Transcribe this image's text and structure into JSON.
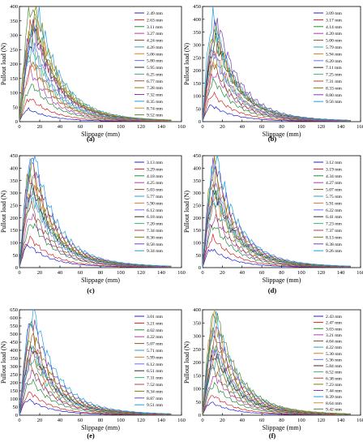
{
  "colors": [
    "#1f1fd6",
    "#d62020",
    "#1f8f2f",
    "#b03ab0",
    "#8a5a2b",
    "#2aa7b5",
    "#e07a1f",
    "#6b6bff",
    "#2f2f2f",
    "#3cb371",
    "#c04040",
    "#808000",
    "#7b3fb0",
    "#1fa0e0",
    "#d09030",
    "#5a8a3a"
  ],
  "chart_data": [
    {
      "type": "line",
      "label": "(a)",
      "xlabel": "Slippage (mm)",
      "ylabel": "Pullout load (N)",
      "xlim": [
        0,
        160
      ],
      "ylim": [
        0,
        400
      ],
      "xticks": [
        0,
        20,
        40,
        60,
        80,
        100,
        120,
        140,
        160
      ],
      "yticks": [
        0,
        50,
        100,
        150,
        200,
        250,
        300,
        350,
        400
      ],
      "series": [
        {
          "name": "2.49 mm",
          "peak": 40,
          "peak_x": 8
        },
        {
          "name": "2.63 mm",
          "peak": 75,
          "peak_x": 10
        },
        {
          "name": "3.11 mm",
          "peak": 120,
          "peak_x": 12
        },
        {
          "name": "3.27 mm",
          "peak": 165,
          "peak_x": 10
        },
        {
          "name": "4.24 mm",
          "peak": 215,
          "peak_x": 9
        },
        {
          "name": "4.26 mm",
          "peak": 230,
          "peak_x": 11
        },
        {
          "name": "5.06 mm",
          "peak": 190,
          "peak_x": 14
        },
        {
          "name": "5.80 mm",
          "peak": 260,
          "peak_x": 12
        },
        {
          "name": "5.95 mm",
          "peak": 300,
          "peak_x": 15
        },
        {
          "name": "6.25 mm",
          "peak": 280,
          "peak_x": 10
        },
        {
          "name": "6.77 mm",
          "peak": 330,
          "peak_x": 13
        },
        {
          "name": "7.28 mm",
          "peak": 360,
          "peak_x": 16
        },
        {
          "name": "7.32 mm",
          "peak": 310,
          "peak_x": 12
        },
        {
          "name": "8.35 mm",
          "peak": 350,
          "peak_x": 18
        },
        {
          "name": "8.74 mm",
          "peak": 340,
          "peak_x": 14
        },
        {
          "name": "9.52 mm",
          "peak": 380,
          "peak_x": 11
        }
      ]
    },
    {
      "type": "line",
      "label": "(b)",
      "xlabel": "Slippage (mm)",
      "ylabel": "Pullout load (N)",
      "xlim": [
        0,
        160
      ],
      "ylim": [
        0,
        450
      ],
      "xticks": [
        0,
        20,
        40,
        60,
        80,
        100,
        120,
        140,
        160
      ],
      "yticks": [
        0,
        50,
        100,
        150,
        200,
        250,
        300,
        350,
        400,
        450
      ],
      "series": [
        {
          "name": "3.09 mm",
          "peak": 60,
          "peak_x": 8
        },
        {
          "name": "3.17 mm",
          "peak": 100,
          "peak_x": 10
        },
        {
          "name": "4.14 mm",
          "peak": 150,
          "peak_x": 11
        },
        {
          "name": "4.20 mm",
          "peak": 180,
          "peak_x": 12
        },
        {
          "name": "5.00 mm",
          "peak": 220,
          "peak_x": 9
        },
        {
          "name": "5.79 mm",
          "peak": 240,
          "peak_x": 12
        },
        {
          "name": "5.94 mm",
          "peak": 230,
          "peak_x": 14
        },
        {
          "name": "6.20 mm",
          "peak": 260,
          "peak_x": 10
        },
        {
          "name": "7.11 mm",
          "peak": 300,
          "peak_x": 13
        },
        {
          "name": "7.25 mm",
          "peak": 320,
          "peak_x": 11
        },
        {
          "name": "7.31 mm",
          "peak": 290,
          "peak_x": 15
        },
        {
          "name": "8.33 mm",
          "peak": 340,
          "peak_x": 12
        },
        {
          "name": "8.80 mm",
          "peak": 370,
          "peak_x": 14
        },
        {
          "name": "9.56 mm",
          "peak": 380,
          "peak_x": 10
        }
      ]
    },
    {
      "type": "line",
      "label": "(c)",
      "xlabel": "Slippage (mm)",
      "ylabel": "Pullout load (N)",
      "xlim": [
        0,
        160
      ],
      "ylim": [
        0,
        450
      ],
      "xticks": [
        0,
        20,
        40,
        60,
        80,
        100,
        120,
        140,
        160
      ],
      "yticks": [
        0,
        50,
        100,
        150,
        200,
        250,
        300,
        350,
        400,
        450
      ],
      "series": [
        {
          "name": "3.13 mm",
          "peak": 85,
          "peak_x": 8
        },
        {
          "name": "3.29 mm",
          "peak": 110,
          "peak_x": 10
        },
        {
          "name": "4.18 mm",
          "peak": 170,
          "peak_x": 12
        },
        {
          "name": "4.25 mm",
          "peak": 200,
          "peak_x": 11
        },
        {
          "name": "5.03 mm",
          "peak": 240,
          "peak_x": 10
        },
        {
          "name": "5.77 mm",
          "peak": 270,
          "peak_x": 12
        },
        {
          "name": "5.90 mm",
          "peak": 300,
          "peak_x": 13
        },
        {
          "name": "6.12 mm",
          "peak": 290,
          "peak_x": 11
        },
        {
          "name": "6.18 mm",
          "peak": 310,
          "peak_x": 12
        },
        {
          "name": "7.20 mm",
          "peak": 330,
          "peak_x": 10
        },
        {
          "name": "7.34 mm",
          "peak": 360,
          "peak_x": 12
        },
        {
          "name": "8.36 mm",
          "peak": 390,
          "peak_x": 11
        },
        {
          "name": "8.58 mm",
          "peak": 410,
          "peak_x": 12
        },
        {
          "name": "9.34 mm",
          "peak": 430,
          "peak_x": 13
        }
      ]
    },
    {
      "type": "line",
      "label": "(d)",
      "xlabel": "Slippage (mm)",
      "ylabel": "Pullout load (N)",
      "xlim": [
        0,
        160
      ],
      "ylim": [
        0,
        450
      ],
      "xticks": [
        0,
        20,
        40,
        60,
        80,
        100,
        120,
        140,
        160
      ],
      "yticks": [
        0,
        50,
        100,
        150,
        200,
        250,
        300,
        350,
        400,
        450
      ],
      "series": [
        {
          "name": "3.12 mm",
          "peak": 70,
          "peak_x": 8
        },
        {
          "name": "3.19 mm",
          "peak": 110,
          "peak_x": 10
        },
        {
          "name": "4.34 mm",
          "peak": 160,
          "peak_x": 11
        },
        {
          "name": "4.27 mm",
          "peak": 190,
          "peak_x": 12
        },
        {
          "name": "5.07 mm",
          "peak": 230,
          "peak_x": 10
        },
        {
          "name": "5.75 mm",
          "peak": 260,
          "peak_x": 12
        },
        {
          "name": "5.91 mm",
          "peak": 280,
          "peak_x": 11
        },
        {
          "name": "6.22 mm",
          "peak": 300,
          "peak_x": 13
        },
        {
          "name": "6.41 mm",
          "peak": 290,
          "peak_x": 12
        },
        {
          "name": "7.23 mm",
          "peak": 320,
          "peak_x": 10
        },
        {
          "name": "7.37 mm",
          "peak": 350,
          "peak_x": 12
        },
        {
          "name": "8.13 mm",
          "peak": 380,
          "peak_x": 11
        },
        {
          "name": "8.38 mm",
          "peak": 400,
          "peak_x": 12
        },
        {
          "name": "9.26 mm",
          "peak": 410,
          "peak_x": 13
        }
      ]
    },
    {
      "type": "line",
      "label": "(e)",
      "xlabel": "Slippage (mm)",
      "ylabel": "Pullout load (N)",
      "xlim": [
        0,
        160
      ],
      "ylim": [
        0,
        650
      ],
      "xticks": [
        0,
        20,
        40,
        60,
        80,
        100,
        120,
        140,
        160
      ],
      "yticks": [
        0,
        50,
        100,
        150,
        200,
        250,
        300,
        350,
        400,
        450,
        500,
        550,
        600,
        650
      ],
      "series": [
        {
          "name": "3.01 mm",
          "peak": 90,
          "peak_x": 8
        },
        {
          "name": "3.21 mm",
          "peak": 130,
          "peak_x": 10
        },
        {
          "name": "4.02 mm",
          "peak": 200,
          "peak_x": 11
        },
        {
          "name": "4.22 mm",
          "peak": 250,
          "peak_x": 12
        },
        {
          "name": "5.07 mm",
          "peak": 290,
          "peak_x": 10
        },
        {
          "name": "5.71 mm",
          "peak": 330,
          "peak_x": 12
        },
        {
          "name": "5.99 mm",
          "peak": 360,
          "peak_x": 11
        },
        {
          "name": "6.12 mm",
          "peak": 380,
          "peak_x": 13
        },
        {
          "name": "6.51 mm",
          "peak": 400,
          "peak_x": 12
        },
        {
          "name": "7.31 mm",
          "peak": 430,
          "peak_x": 10
        },
        {
          "name": "7.52 mm",
          "peak": 460,
          "peak_x": 12
        },
        {
          "name": "8.34 mm",
          "peak": 520,
          "peak_x": 11
        },
        {
          "name": "8.87 mm",
          "peak": 560,
          "peak_x": 12
        },
        {
          "name": "9.51 mm",
          "peak": 610,
          "peak_x": 13
        }
      ]
    },
    {
      "type": "line",
      "label": "(f)",
      "xlabel": "Slippage (mm)",
      "ylabel": "Pullout load (N)",
      "xlim": [
        0,
        160
      ],
      "ylim": [
        0,
        400
      ],
      "xticks": [
        0,
        20,
        40,
        60,
        80,
        100,
        120,
        140,
        160
      ],
      "yticks": [
        0,
        50,
        100,
        150,
        200,
        250,
        300,
        350,
        400
      ],
      "series": [
        {
          "name": "2.43 mm",
          "peak": 45,
          "peak_x": 8
        },
        {
          "name": "2.47 mm",
          "peak": 70,
          "peak_x": 10
        },
        {
          "name": "3.03 mm",
          "peak": 110,
          "peak_x": 11
        },
        {
          "name": "3.21 mm",
          "peak": 140,
          "peak_x": 12
        },
        {
          "name": "4.04 mm",
          "peak": 170,
          "peak_x": 10
        },
        {
          "name": "4.22 mm",
          "peak": 190,
          "peak_x": 12
        },
        {
          "name": "5.30 mm",
          "peak": 210,
          "peak_x": 11
        },
        {
          "name": "5.36 mm",
          "peak": 230,
          "peak_x": 13
        },
        {
          "name": "5.84 mm",
          "peak": 220,
          "peak_x": 12
        },
        {
          "name": "6.52 mm",
          "peak": 250,
          "peak_x": 10
        },
        {
          "name": "6.38 mm",
          "peak": 270,
          "peak_x": 12
        },
        {
          "name": "7.23 mm",
          "peak": 300,
          "peak_x": 11
        },
        {
          "name": "7.44 mm",
          "peak": 320,
          "peak_x": 12
        },
        {
          "name": "8.39 mm",
          "peak": 340,
          "peak_x": 13
        },
        {
          "name": "8.64 mm",
          "peak": 355,
          "peak_x": 11
        },
        {
          "name": "9.42 mm",
          "peak": 375,
          "peak_x": 12
        }
      ]
    }
  ]
}
